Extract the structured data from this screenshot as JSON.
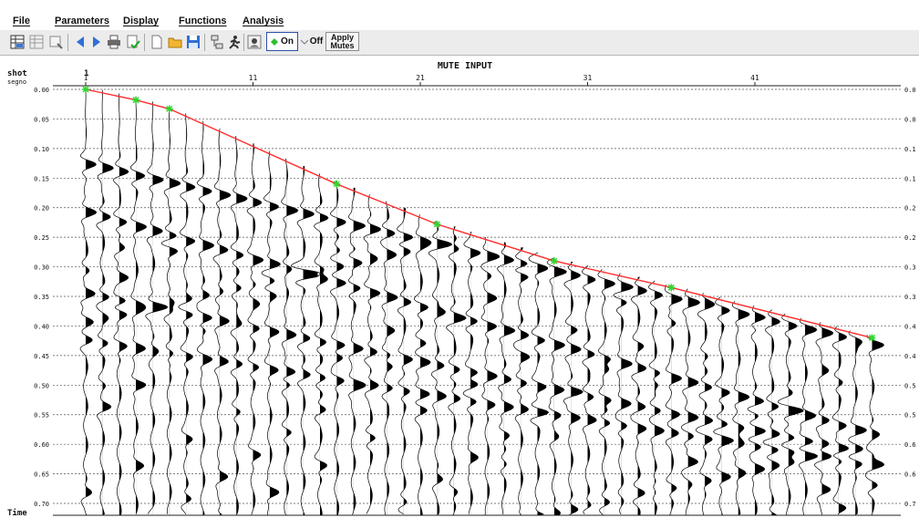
{
  "menu": [
    "File",
    "Parameters",
    "Display",
    "Functions",
    "Analysis"
  ],
  "toolbar": {
    "icons": [
      "table-icon",
      "table-gray-icon",
      "zoom-icon",
      "arrow-left-icon",
      "arrow-right-icon",
      "printer-icon",
      "document-check-icon",
      "new-document-icon",
      "open-folder-icon",
      "save-icon",
      "network-icon",
      "run-icon",
      "pick-mode-icon"
    ],
    "on_label": "On",
    "off_label": "Off",
    "apply_label_1": "Apply",
    "apply_label_2": "Mutes",
    "on_color": "#2bbf2b",
    "on_border": "#2c4fa8"
  },
  "plot": {
    "title": "MUTE INPUT",
    "shot_label": "shot",
    "shot_value": "1",
    "segno_label": "segno",
    "time_label": "Time",
    "trace_ticks": [
      "1",
      "11",
      "21",
      "31",
      "41"
    ],
    "time_ticks": [
      "0.00",
      "0.05",
      "0.10",
      "0.15",
      "0.20",
      "0.25",
      "0.30",
      "0.35",
      "0.40",
      "0.45",
      "0.50",
      "0.55",
      "0.60",
      "0.65",
      "0.70"
    ],
    "right_ticks": [
      "0.0",
      "0.0",
      "0.1",
      "0.1",
      "0.2",
      "0.2",
      "0.3",
      "0.3",
      "0.4",
      "0.4",
      "0.5",
      "0.5",
      "0.6",
      "0.6",
      "0.7"
    ],
    "trace_count": 48,
    "time_max": 0.72,
    "mute_color": "#ff2d2d",
    "pick_color": "#2fd62f",
    "mute_picks": [
      {
        "trace": 1,
        "time": 0.0
      },
      {
        "trace": 4,
        "time": 0.018
      },
      {
        "trace": 6,
        "time": 0.033
      },
      {
        "trace": 16,
        "time": 0.16
      },
      {
        "trace": 22,
        "time": 0.228
      },
      {
        "trace": 29,
        "time": 0.29
      },
      {
        "trace": 36,
        "time": 0.335
      },
      {
        "trace": 48,
        "time": 0.42
      }
    ]
  }
}
